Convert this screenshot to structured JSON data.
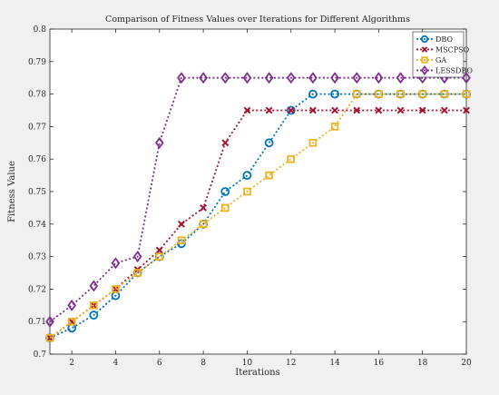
{
  "chart_data": {
    "type": "line",
    "title": "Comparison of Fitness Values over Iterations for Different Algorithms",
    "xlabel": "Iterations",
    "ylabel": "Fitness Value",
    "xlim": [
      1,
      20
    ],
    "ylim": [
      0.7,
      0.8
    ],
    "x": [
      1,
      2,
      3,
      4,
      5,
      6,
      7,
      8,
      9,
      10,
      11,
      12,
      13,
      14,
      15,
      16,
      17,
      18,
      19,
      20
    ],
    "x_ticks": [
      2,
      4,
      6,
      8,
      10,
      12,
      14,
      16,
      18,
      20
    ],
    "y_ticks": [
      0.7,
      0.71,
      0.72,
      0.73,
      0.74,
      0.75,
      0.76,
      0.77,
      0.78,
      0.79,
      0.8
    ],
    "grid": false,
    "legend_position": "top-right",
    "series": [
      {
        "name": "DBO",
        "color": "#0072bd",
        "marker": "circle",
        "values": [
          0.705,
          0.708,
          0.712,
          0.718,
          0.725,
          0.73,
          0.734,
          0.74,
          0.75,
          0.755,
          0.765,
          0.775,
          0.78,
          0.78,
          0.78,
          0.78,
          0.78,
          0.78,
          0.78,
          0.78
        ]
      },
      {
        "name": "MSCPSO",
        "color": "#a2142f",
        "marker": "x",
        "values": [
          0.705,
          0.71,
          0.715,
          0.72,
          0.726,
          0.732,
          0.74,
          0.745,
          0.765,
          0.775,
          0.775,
          0.775,
          0.775,
          0.775,
          0.775,
          0.775,
          0.775,
          0.775,
          0.775,
          0.775
        ]
      },
      {
        "name": "GA",
        "color": "#edb120",
        "marker": "square",
        "values": [
          0.705,
          0.71,
          0.715,
          0.72,
          0.725,
          0.73,
          0.735,
          0.74,
          0.745,
          0.75,
          0.755,
          0.76,
          0.765,
          0.77,
          0.78,
          0.78,
          0.78,
          0.78,
          0.78,
          0.78
        ]
      },
      {
        "name": "LESSDBO",
        "color": "#7e2f8e",
        "marker": "diamond",
        "values": [
          0.71,
          0.715,
          0.721,
          0.728,
          0.73,
          0.765,
          0.785,
          0.785,
          0.785,
          0.785,
          0.785,
          0.785,
          0.785,
          0.785,
          0.785,
          0.785,
          0.785,
          0.785,
          0.785,
          0.785
        ]
      }
    ]
  }
}
